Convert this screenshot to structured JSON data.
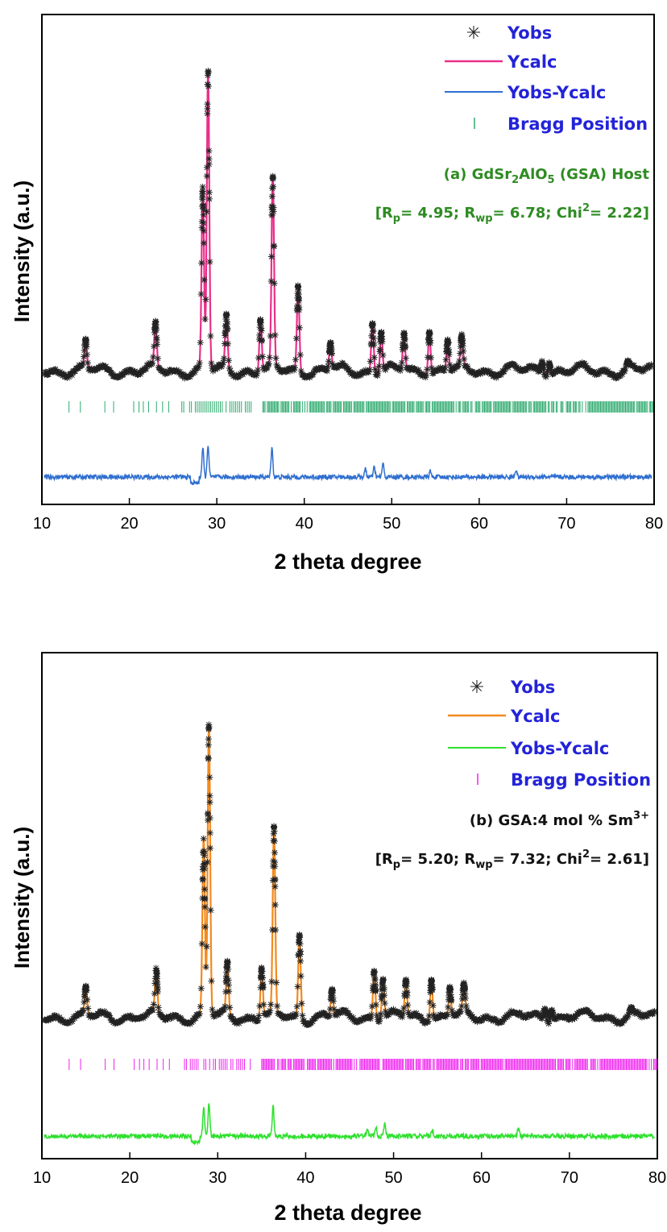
{
  "chart_data": [
    {
      "type": "line",
      "panel": "a",
      "xlabel": "2 theta degree",
      "ylabel": "Intensity (a.u.)",
      "xlim": [
        10,
        80
      ],
      "xticks": [
        "10",
        "20",
        "30",
        "40",
        "50",
        "60",
        "70",
        "80"
      ],
      "colors": {
        "obs": "#222222",
        "calc": "#e8318a",
        "diff": "#2f6fd0",
        "bragg": "#2eaa6e",
        "legend_text": "#2323d8",
        "annotation": "#2e8b22"
      },
      "legend": [
        "Yobs",
        "Ycalc",
        "Yobs-Ycalc",
        "Bragg Position"
      ],
      "annotation_sample": {
        "pre": "(a) GdSr",
        "sub1": "2",
        "mid": "AlO",
        "sub2": "5",
        "post": " (GSA) Host"
      },
      "annotation_fit": {
        "open": "[R",
        "rp_sub": "p",
        "rp_val": "= 4.95; R",
        "rwp_sub": "wp",
        "rwp_val": "= 6.78; Chi",
        "chi_sup": "2",
        "chi_val": "= 2.22]"
      },
      "baseline": 0.05,
      "peaks": [
        {
          "x": 15.0,
          "y": 0.14
        },
        {
          "x": 23.0,
          "y": 0.19
        },
        {
          "x": 28.4,
          "y": 0.62
        },
        {
          "x": 29.0,
          "y": 1.0
        },
        {
          "x": 31.1,
          "y": 0.22
        },
        {
          "x": 35.0,
          "y": 0.22
        },
        {
          "x": 36.4,
          "y": 0.65
        },
        {
          "x": 39.3,
          "y": 0.32
        },
        {
          "x": 43.0,
          "y": 0.14
        },
        {
          "x": 47.8,
          "y": 0.21
        },
        {
          "x": 48.8,
          "y": 0.18
        },
        {
          "x": 51.4,
          "y": 0.17
        },
        {
          "x": 54.3,
          "y": 0.19
        },
        {
          "x": 56.4,
          "y": 0.15
        },
        {
          "x": 58.0,
          "y": 0.14
        },
        {
          "x": 67.2,
          "y": 0.09
        },
        {
          "x": 68.0,
          "y": 0.09
        },
        {
          "x": 77.0,
          "y": 0.07
        }
      ]
    },
    {
      "type": "line",
      "panel": "b",
      "xlabel": "2 theta degree",
      "ylabel": "Intensity (a.u.)",
      "xlim": [
        10,
        80
      ],
      "xticks": [
        "10",
        "20",
        "30",
        "40",
        "50",
        "60",
        "70",
        "80"
      ],
      "colors": {
        "obs": "#222222",
        "calc": "#f28a1f",
        "diff": "#2ee02e",
        "bragg": "#ee22ee",
        "legend_text": "#2323d8",
        "annotation": "#111111"
      },
      "legend": [
        "Yobs",
        "Ycalc",
        "Yobs-Ycalc",
        "Bragg Position"
      ],
      "annotation_sample": {
        "pre": "(b) GSA:4 mol % Sm",
        "sup": "3+"
      },
      "annotation_fit": {
        "open": "[R",
        "rp_sub": "p",
        "rp_val": "= 5.20; R",
        "rwp_sub": "wp",
        "rwp_val": "= 7.32; Chi",
        "chi_sup": "2",
        "chi_val": "= 2.61]"
      },
      "baseline": 0.05,
      "peaks": [
        {
          "x": 15.0,
          "y": 0.14
        },
        {
          "x": 23.0,
          "y": 0.19
        },
        {
          "x": 28.4,
          "y": 0.62
        },
        {
          "x": 29.0,
          "y": 1.0
        },
        {
          "x": 31.1,
          "y": 0.22
        },
        {
          "x": 35.0,
          "y": 0.22
        },
        {
          "x": 36.4,
          "y": 0.65
        },
        {
          "x": 39.3,
          "y": 0.32
        },
        {
          "x": 43.0,
          "y": 0.14
        },
        {
          "x": 47.8,
          "y": 0.21
        },
        {
          "x": 48.8,
          "y": 0.18
        },
        {
          "x": 51.4,
          "y": 0.17
        },
        {
          "x": 54.3,
          "y": 0.19
        },
        {
          "x": 56.4,
          "y": 0.15
        },
        {
          "x": 58.0,
          "y": 0.14
        },
        {
          "x": 67.2,
          "y": 0.09
        },
        {
          "x": 68.0,
          "y": 0.09
        },
        {
          "x": 77.0,
          "y": 0.07
        }
      ]
    }
  ]
}
